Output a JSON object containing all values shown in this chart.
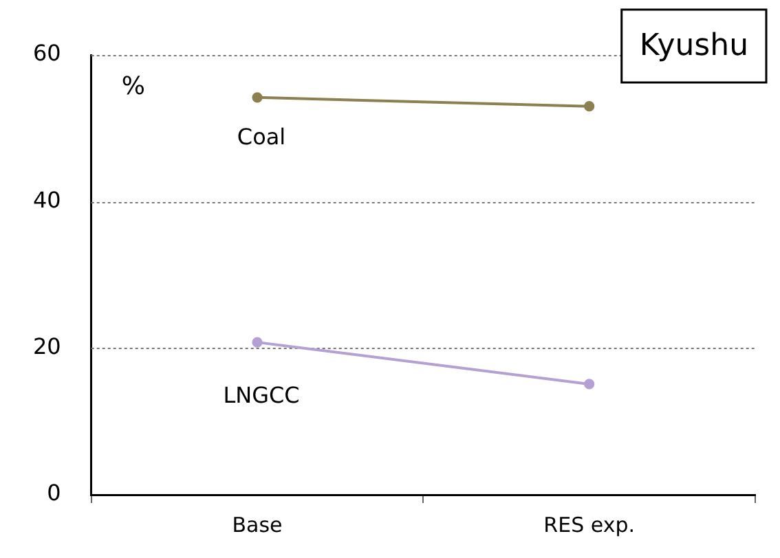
{
  "chart_data": {
    "type": "line",
    "title": "Kyushu",
    "ylabel": "%",
    "categories": [
      "Base",
      "RES exp."
    ],
    "series": [
      {
        "name": "Coal",
        "color": "#8c8050",
        "values": [
          54.2,
          53.0
        ]
      },
      {
        "name": "LNGCC",
        "color": "#b4a0d2",
        "values": [
          20.8,
          15.1
        ]
      }
    ],
    "ylim": [
      0,
      60
    ],
    "yticks": [
      0,
      20,
      40,
      60
    ],
    "grid": "y",
    "legend": false,
    "marker": "circle",
    "line_style": "solid"
  }
}
